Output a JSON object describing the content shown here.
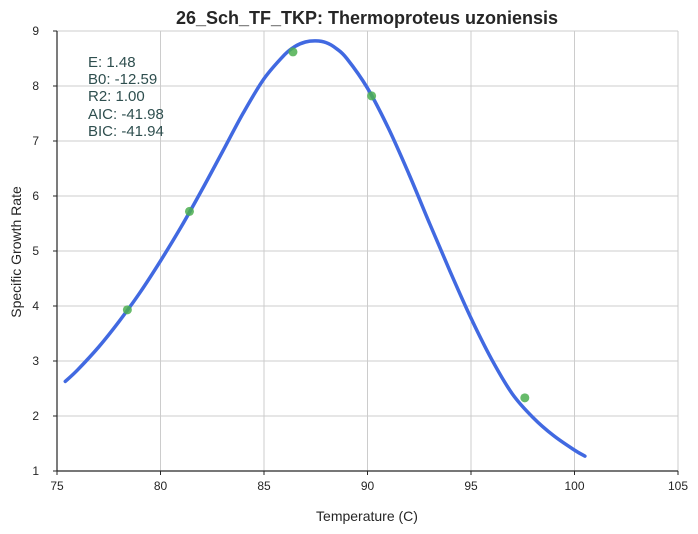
{
  "chart_data": {
    "type": "line",
    "title": "26_Sch_TF_TKP: Thermoproteus uzoniensis",
    "xlabel": "Temperature (C)",
    "ylabel": "Specific Growth Rate",
    "xlim": [
      75,
      105
    ],
    "ylim": [
      1,
      9
    ],
    "xticks": [
      "75",
      "80",
      "85",
      "90",
      "95",
      "100",
      "105"
    ],
    "yticks": [
      "1",
      "2",
      "3",
      "4",
      "5",
      "6",
      "7",
      "8",
      "9"
    ],
    "grid": true,
    "annotations": [
      "E:  1.48",
      "B0:  -12.59",
      "R2:  1.00",
      "AIC: -41.98",
      "BIC: -41.94"
    ],
    "series": [
      {
        "kind": "fitted-curve",
        "color": "#4169e1",
        "x": [
          75.4,
          76.0,
          77.0,
          78.0,
          79.0,
          80.0,
          81.0,
          82.0,
          83.0,
          84.0,
          85.0,
          86.0,
          86.5,
          87.0,
          87.5,
          88.0,
          88.5,
          89.0,
          90.0,
          91.0,
          92.0,
          93.0,
          94.0,
          95.0,
          96.0,
          97.0,
          98.0,
          99.0,
          100.0,
          100.5
        ],
        "y": [
          2.63,
          2.84,
          3.25,
          3.72,
          4.24,
          4.82,
          5.44,
          6.11,
          6.81,
          7.51,
          8.13,
          8.57,
          8.72,
          8.8,
          8.82,
          8.79,
          8.68,
          8.5,
          7.96,
          7.24,
          6.4,
          5.5,
          4.62,
          3.78,
          3.03,
          2.4,
          1.97,
          1.64,
          1.38,
          1.27
        ]
      },
      {
        "kind": "observed-points",
        "color": "#4caf50",
        "x": [
          78.4,
          81.4,
          86.4,
          90.2,
          97.6
        ],
        "y": [
          3.93,
          5.72,
          8.62,
          7.82,
          2.33
        ]
      }
    ]
  }
}
